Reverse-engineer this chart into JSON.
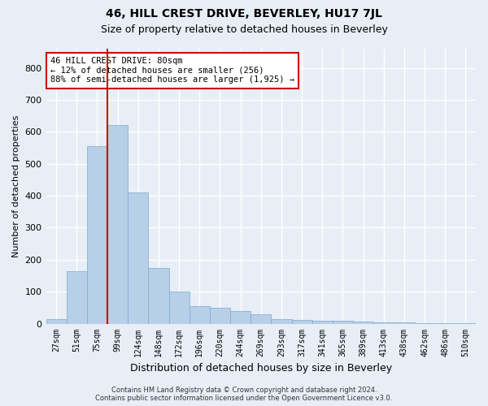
{
  "title": "46, HILL CREST DRIVE, BEVERLEY, HU17 7JL",
  "subtitle": "Size of property relative to detached houses in Beverley",
  "xlabel": "Distribution of detached houses by size in Beverley",
  "ylabel": "Number of detached properties",
  "categories": [
    "27sqm",
    "51sqm",
    "75sqm",
    "99sqm",
    "124sqm",
    "148sqm",
    "172sqm",
    "196sqm",
    "220sqm",
    "244sqm",
    "269sqm",
    "293sqm",
    "317sqm",
    "341sqm",
    "365sqm",
    "389sqm",
    "413sqm",
    "438sqm",
    "462sqm",
    "486sqm",
    "510sqm"
  ],
  "values": [
    15,
    165,
    555,
    620,
    410,
    175,
    100,
    55,
    50,
    40,
    30,
    15,
    12,
    10,
    8,
    7,
    5,
    3,
    2,
    1,
    1
  ],
  "bar_color": "#b8cfe8",
  "bar_edgecolor": "#7aaad0",
  "ylim": [
    0,
    860
  ],
  "yticks": [
    0,
    100,
    200,
    300,
    400,
    500,
    600,
    700,
    800
  ],
  "red_line_index": 2.5,
  "annotation_line1": "46 HILL CREST DRIVE: 80sqm",
  "annotation_line2": "← 12% of detached houses are smaller (256)",
  "annotation_line3": "88% of semi-detached houses are larger (1,925) →",
  "annotation_box_color": "#ffffff",
  "annotation_box_edgecolor": "#cc0000",
  "footer_line1": "Contains HM Land Registry data © Crown copyright and database right 2024.",
  "footer_line2": "Contains public sector information licensed under the Open Government Licence v3.0.",
  "background_color": "#e8eef6",
  "plot_background": "#e8eef6",
  "grid_color": "#ffffff",
  "title_fontsize": 10,
  "subtitle_fontsize": 9,
  "tick_fontsize": 7,
  "ylabel_fontsize": 8,
  "xlabel_fontsize": 9,
  "annotation_fontsize": 7.5,
  "footer_fontsize": 6
}
